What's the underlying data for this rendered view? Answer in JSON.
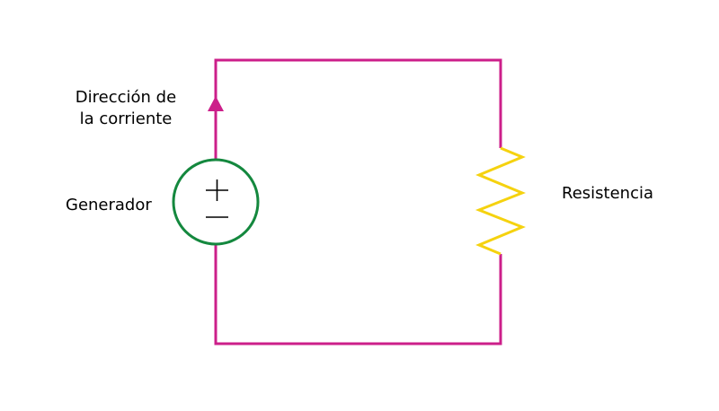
{
  "colors": {
    "wire": "#cc1f8a",
    "generator": "#14883e",
    "resistor": "#f5d20f",
    "arrow": "#cc1f8a",
    "text": "#000000",
    "background": "#ffffff"
  },
  "labels": {
    "current_line1": "Dirección de",
    "current_line2": "la corriente",
    "generator": "Generador",
    "resistor": "Resistencia"
  },
  "generator": {
    "plus_symbol": "+",
    "minus_symbol": "−"
  },
  "icons": {
    "arrow": "arrow-up-icon",
    "source": "voltage-source-icon",
    "resistor": "resistor-icon"
  }
}
